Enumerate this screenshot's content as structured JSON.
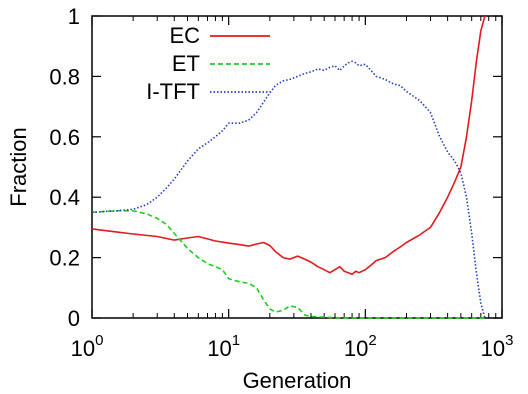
{
  "chart_data": {
    "type": "line",
    "title": "",
    "xlabel": "Generation",
    "ylabel": "Fraction",
    "xscale": "log",
    "xlim": [
      1,
      1000
    ],
    "ylim": [
      0,
      1
    ],
    "x_ticks": [
      {
        "value": 1,
        "base": "10",
        "exp": "0"
      },
      {
        "value": 10,
        "base": "10",
        "exp": "1"
      },
      {
        "value": 100,
        "base": "10",
        "exp": "2"
      },
      {
        "value": 1000,
        "base": "10",
        "exp": "3"
      }
    ],
    "y_ticks": [
      {
        "value": 0,
        "label": "0"
      },
      {
        "value": 0.2,
        "label": "0.2"
      },
      {
        "value": 0.4,
        "label": "0.4"
      },
      {
        "value": 0.6,
        "label": "0.6"
      },
      {
        "value": 0.8,
        "label": "0.8"
      },
      {
        "value": 1,
        "label": "1"
      }
    ],
    "grid": false,
    "legend_position": "top-left",
    "series": [
      {
        "name": "EC",
        "color": "#e31a1c",
        "style": "solid",
        "x": [
          1,
          1.5,
          2,
          3,
          4,
          5,
          6,
          7,
          8,
          10,
          12,
          14,
          16,
          18,
          20,
          22,
          25,
          28,
          32,
          36,
          40,
          45,
          50,
          55,
          60,
          65,
          70,
          75,
          80,
          85,
          90,
          100,
          110,
          120,
          140,
          160,
          180,
          200,
          250,
          300,
          350,
          400,
          450,
          500,
          550,
          600,
          650,
          700,
          750
        ],
        "y": [
          0.295,
          0.285,
          0.278,
          0.27,
          0.258,
          0.265,
          0.27,
          0.262,
          0.255,
          0.248,
          0.243,
          0.238,
          0.245,
          0.25,
          0.24,
          0.22,
          0.2,
          0.195,
          0.205,
          0.195,
          0.185,
          0.17,
          0.16,
          0.15,
          0.16,
          0.17,
          0.155,
          0.15,
          0.145,
          0.155,
          0.15,
          0.16,
          0.175,
          0.19,
          0.2,
          0.22,
          0.235,
          0.25,
          0.275,
          0.3,
          0.35,
          0.4,
          0.45,
          0.5,
          0.6,
          0.72,
          0.85,
          0.95,
          1.0
        ]
      },
      {
        "name": "ET",
        "color": "#22cc22",
        "style": "dashed",
        "x": [
          1,
          1.5,
          2,
          2.5,
          3,
          3.5,
          4,
          5,
          6,
          7,
          8,
          9,
          10,
          12,
          14,
          16,
          18,
          20,
          22,
          25,
          28,
          32,
          36,
          40,
          50,
          60,
          80,
          100,
          200,
          400,
          750
        ],
        "y": [
          0.35,
          0.355,
          0.355,
          0.345,
          0.33,
          0.31,
          0.28,
          0.23,
          0.2,
          0.18,
          0.17,
          0.16,
          0.13,
          0.12,
          0.115,
          0.1,
          0.06,
          0.03,
          0.02,
          0.025,
          0.04,
          0.035,
          0.01,
          0.005,
          0.003,
          0.001,
          0,
          0,
          0,
          0,
          0
        ]
      },
      {
        "name": "I-TFT",
        "color": "#1f3fbf",
        "style": "dotted",
        "x": [
          1,
          1.5,
          2,
          2.5,
          3,
          3.5,
          4,
          5,
          6,
          7,
          8,
          9,
          10,
          12,
          14,
          16,
          18,
          20,
          22,
          25,
          28,
          32,
          36,
          40,
          45,
          50,
          55,
          60,
          65,
          70,
          75,
          80,
          85,
          90,
          100,
          110,
          120,
          140,
          160,
          180,
          200,
          250,
          300,
          350,
          400,
          450,
          500,
          550,
          600,
          650,
          700,
          750
        ],
        "y": [
          0.35,
          0.355,
          0.36,
          0.375,
          0.4,
          0.43,
          0.46,
          0.52,
          0.56,
          0.58,
          0.6,
          0.62,
          0.645,
          0.645,
          0.655,
          0.68,
          0.715,
          0.745,
          0.77,
          0.785,
          0.79,
          0.8,
          0.81,
          0.815,
          0.825,
          0.82,
          0.83,
          0.835,
          0.82,
          0.835,
          0.845,
          0.85,
          0.845,
          0.835,
          0.84,
          0.82,
          0.8,
          0.79,
          0.775,
          0.77,
          0.75,
          0.72,
          0.68,
          0.6,
          0.55,
          0.52,
          0.48,
          0.4,
          0.28,
          0.15,
          0.05,
          0.0
        ]
      }
    ]
  }
}
